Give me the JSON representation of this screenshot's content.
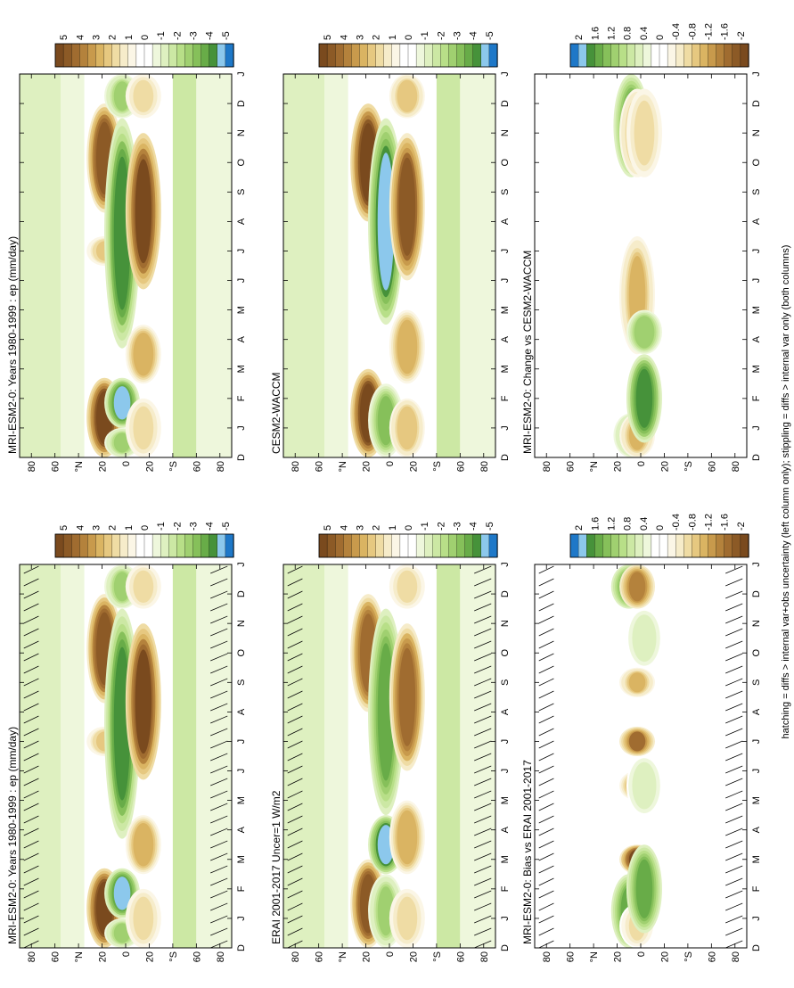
{
  "figure": {
    "footer_note": "hatching = diffs > internal var+obs uncertainty (left column only); stippling = diffs > internal var only (both columns)"
  },
  "axes": {
    "month_ticks": [
      "D",
      "J",
      "F",
      "M",
      "A",
      "M",
      "J",
      "J",
      "A",
      "S",
      "O",
      "N",
      "D",
      "J"
    ],
    "lat_ticks": [
      "80",
      "60",
      "°N",
      "20",
      "0",
      "20",
      "°S",
      "60",
      "80"
    ]
  },
  "colorbars": {
    "field": [
      "5",
      "4",
      "3",
      "2",
      "1",
      "0",
      "-1",
      "-2",
      "-3",
      "-4",
      "-5"
    ],
    "diff": [
      "2",
      "1.6",
      "1.2",
      "0.8",
      "0.4",
      "0",
      "-0.4",
      "-0.8",
      "-1.2",
      "-1.6",
      "-2"
    ]
  },
  "colors": {
    "field_scale": [
      "#7a4a1e",
      "#8c5a26",
      "#a06c30",
      "#b4823c",
      "#c89a4c",
      "#dab462",
      "#e6c880",
      "#efdca4",
      "#f6ecca",
      "#fbf6e6",
      "#ffffff",
      "#ffffff",
      "#eef7dc",
      "#def0c0",
      "#cce8a4",
      "#b8df88",
      "#a0d070",
      "#86c05a",
      "#68ac48",
      "#46923a",
      "#8cc8ec",
      "#1e78c8"
    ],
    "diff_scale": [
      "#1e78c8",
      "#8cc8ec",
      "#46923a",
      "#68ac48",
      "#86c05a",
      "#a0d070",
      "#b8df88",
      "#cce8a4",
      "#def0c0",
      "#eef7dc",
      "#ffffff",
      "#ffffff",
      "#fbf6e6",
      "#f6ecca",
      "#efdca4",
      "#e6c880",
      "#dab462",
      "#c89a4c",
      "#b4823c",
      "#a06c30",
      "#8c5a26",
      "#7a4a1e"
    ]
  },
  "chart_data": [
    {
      "type": "heatmap",
      "title": "MRI-ESM2-0: Years 1980-1999 : ep (mm/day)",
      "colorbar": "field",
      "hatching": true,
      "features": [
        {
          "lat": 18,
          "months": [
            [
              0.5,
              3.2,
              5.5
            ],
            [
              7,
              8,
              2.2
            ],
            [
              8.8,
              12.5,
              5
            ]
          ]
        },
        {
          "lat": 3,
          "months": [
            [
              0.5,
              1.5,
              -2.5
            ],
            [
              1.5,
              3.2,
              -4.5
            ],
            [
              4.2,
              12,
              -4.2
            ],
            [
              12,
              13.5,
              -2.5
            ]
          ]
        },
        {
          "lat": -15,
          "months": [
            [
              0.5,
              2.5,
              2
            ],
            [
              3,
              5,
              3
            ],
            [
              6.2,
              11.5,
              5.2
            ],
            [
              12,
              13.5,
              2
            ]
          ]
        }
      ]
    },
    {
      "type": "heatmap",
      "title": "MRI-ESM2-0: Years 1980-1999 : ep (mm/day)",
      "colorbar": "field",
      "hatching": false,
      "features": [
        {
          "lat": 18,
          "months": [
            [
              0.5,
              3.2,
              5.5
            ],
            [
              7,
              8,
              2.2
            ],
            [
              8.8,
              12.5,
              5
            ]
          ]
        },
        {
          "lat": 3,
          "months": [
            [
              0.5,
              1.5,
              -2.5
            ],
            [
              1.5,
              3.2,
              -4.5
            ],
            [
              4.2,
              12,
              -4.2
            ],
            [
              12,
              13.5,
              -2.5
            ]
          ]
        },
        {
          "lat": -15,
          "months": [
            [
              0.5,
              2.5,
              2
            ],
            [
              3,
              5,
              3
            ],
            [
              6.2,
              11.5,
              5.2
            ],
            [
              12,
              13.5,
              2
            ]
          ]
        }
      ]
    },
    {
      "type": "heatmap",
      "title": "ERAI 2001-2017 Uncer=1 W/m2",
      "colorbar": "field",
      "hatching": true,
      "features": [
        {
          "lat": 18,
          "months": [
            [
              0.5,
              3.5,
              5
            ],
            [
              8.5,
              12.5,
              4.5
            ]
          ]
        },
        {
          "lat": 3,
          "months": [
            [
              0.5,
              3,
              -2.5
            ],
            [
              3,
              5,
              -4.8
            ],
            [
              5,
              12,
              -3.5
            ]
          ]
        },
        {
          "lat": -15,
          "months": [
            [
              0.5,
              2.5,
              2
            ],
            [
              3,
              5.5,
              3
            ],
            [
              6.5,
              11.5,
              4.5
            ],
            [
              12,
              13.5,
              2
            ]
          ]
        }
      ]
    },
    {
      "type": "heatmap",
      "title": "CESM2-WACCM",
      "colorbar": "field",
      "hatching": false,
      "features": [
        {
          "lat": 18,
          "months": [
            [
              0.5,
              3.5,
              5.5
            ],
            [
              8.5,
              12.5,
              5.5
            ]
          ]
        },
        {
          "lat": 3,
          "months": [
            [
              0.5,
              3,
              -3
            ],
            [
              5,
              12,
              -4.8
            ]
          ]
        },
        {
          "lat": -15,
          "months": [
            [
              0.5,
              2.5,
              2.5
            ],
            [
              3,
              5.5,
              3
            ],
            [
              6.5,
              11.5,
              4.8
            ],
            [
              12,
              13.5,
              2.5
            ]
          ]
        }
      ]
    },
    {
      "type": "heatmap",
      "title": "MRI-ESM2-0: Bias vs ERAI 2001-2017",
      "colorbar": "diff",
      "hatching": true,
      "features": [
        {
          "lat": 10,
          "months": [
            [
              0.5,
              3,
              1.6
            ],
            [
              12,
              13.5,
              1.6
            ]
          ]
        },
        {
          "lat": 3,
          "months": [
            [
              0.5,
              2,
              -0.6
            ],
            [
              3,
              4,
              -2
            ],
            [
              5.5,
              6.5,
              -1.2
            ],
            [
              7,
              8,
              -1.6
            ],
            [
              9,
              10,
              -1
            ],
            [
              12,
              13.5,
              -1.4
            ]
          ]
        },
        {
          "lat": -3,
          "months": [
            [
              1,
              4,
              1.6
            ],
            [
              5,
              7,
              0.6
            ],
            [
              10,
              12,
              0.6
            ]
          ]
        }
      ]
    },
    {
      "type": "heatmap",
      "title": "MRI-ESM2-0: Change vs CESM2-WACCM",
      "colorbar": "diff",
      "hatching": false,
      "features": [
        {
          "lat": 8,
          "months": [
            [
              0.5,
              2,
              1
            ],
            [
              10,
              13.5,
              1.6
            ]
          ]
        },
        {
          "lat": 3,
          "months": [
            [
              0.5,
              2,
              -1
            ],
            [
              4,
              8,
              -1
            ],
            [
              10,
              13,
              -1
            ]
          ]
        },
        {
          "lat": -3,
          "months": [
            [
              1,
              4,
              1.8
            ],
            [
              4,
              5.5,
              1.2
            ],
            [
              10,
              13,
              -0.8
            ]
          ]
        }
      ]
    }
  ]
}
